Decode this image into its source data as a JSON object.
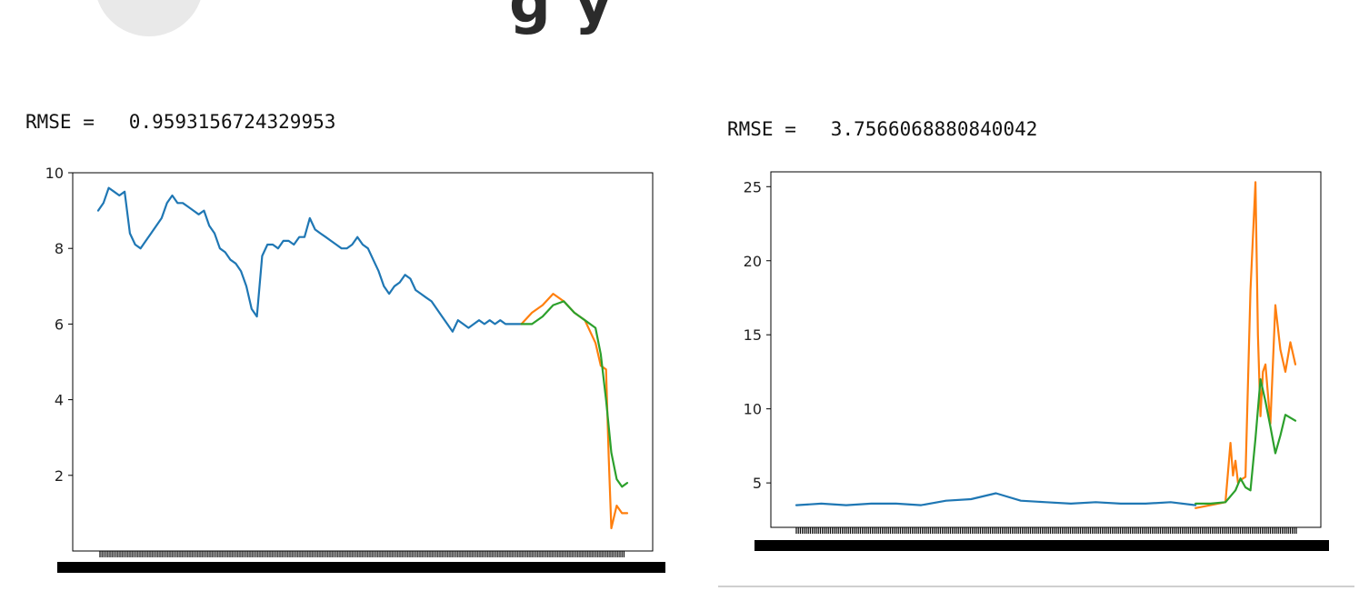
{
  "header": {
    "title_fragment": "g y"
  },
  "colors": {
    "blue": "#1f77b4",
    "orange": "#ff7f0e",
    "green": "#2ca02c",
    "axis": "#000000"
  },
  "chart_data": [
    {
      "type": "line",
      "title": "",
      "rmse_label": "RMSE =",
      "rmse_value": "0.9593156724329953",
      "ylim": [
        0,
        10
      ],
      "yticks": [
        2,
        4,
        6,
        8,
        10
      ],
      "series": [
        {
          "color": "#1f77b4",
          "x": [
            0.0,
            0.01,
            0.02,
            0.03,
            0.04,
            0.05,
            0.06,
            0.07,
            0.08,
            0.09,
            0.1,
            0.11,
            0.12,
            0.13,
            0.14,
            0.15,
            0.16,
            0.17,
            0.18,
            0.19,
            0.2,
            0.21,
            0.22,
            0.23,
            0.24,
            0.25,
            0.26,
            0.27,
            0.28,
            0.29,
            0.3,
            0.31,
            0.32,
            0.33,
            0.34,
            0.35,
            0.36,
            0.37,
            0.38,
            0.39,
            0.4,
            0.41,
            0.42,
            0.43,
            0.44,
            0.45,
            0.46,
            0.47,
            0.48,
            0.49,
            0.5,
            0.51,
            0.52,
            0.53,
            0.54,
            0.55,
            0.56,
            0.57,
            0.58,
            0.59,
            0.6,
            0.61,
            0.62,
            0.63,
            0.64,
            0.65,
            0.66,
            0.67,
            0.68,
            0.69,
            0.7,
            0.71,
            0.72,
            0.73,
            0.74,
            0.75,
            0.76,
            0.77,
            0.78,
            0.79,
            0.8
          ],
          "y": [
            9.0,
            9.2,
            9.6,
            9.5,
            9.4,
            9.5,
            8.4,
            8.1,
            8.0,
            8.2,
            8.4,
            8.6,
            8.8,
            9.2,
            9.4,
            9.2,
            9.2,
            9.1,
            9.0,
            8.9,
            9.0,
            8.6,
            8.4,
            8.0,
            7.9,
            7.7,
            7.6,
            7.4,
            7.0,
            6.4,
            6.2,
            7.8,
            8.1,
            8.1,
            8.0,
            8.2,
            8.2,
            8.1,
            8.3,
            8.3,
            8.8,
            8.5,
            8.4,
            8.3,
            8.2,
            8.1,
            8.0,
            8.0,
            8.1,
            8.3,
            8.1,
            8.0,
            7.7,
            7.4,
            7.0,
            6.8,
            7.0,
            7.1,
            7.3,
            7.2,
            6.9,
            6.8,
            6.7,
            6.6,
            6.4,
            6.2,
            6.0,
            5.8,
            6.1,
            6.0,
            5.9,
            6.0,
            6.1,
            6.0,
            6.1,
            6.0,
            6.1,
            6.0,
            6.0,
            6.0,
            6.0
          ]
        },
        {
          "color": "#ff7f0e",
          "x": [
            0.8,
            0.82,
            0.84,
            0.86,
            0.88,
            0.9,
            0.92,
            0.94,
            0.95,
            0.96,
            0.965,
            0.97,
            0.98,
            0.99,
            1.0
          ],
          "y": [
            6.0,
            6.3,
            6.5,
            6.8,
            6.6,
            6.3,
            6.1,
            5.5,
            4.9,
            4.8,
            2.5,
            0.6,
            1.2,
            1.0,
            1.0
          ]
        },
        {
          "color": "#2ca02c",
          "x": [
            0.8,
            0.82,
            0.84,
            0.86,
            0.88,
            0.9,
            0.92,
            0.94,
            0.95,
            0.96,
            0.97,
            0.98,
            0.99,
            1.0
          ],
          "y": [
            6.0,
            6.0,
            6.2,
            6.5,
            6.6,
            6.3,
            6.1,
            5.9,
            5.2,
            4.0,
            2.6,
            1.9,
            1.7,
            1.8
          ]
        }
      ]
    },
    {
      "type": "line",
      "title": "",
      "rmse_label": "RMSE =",
      "rmse_value": "3.7566068880840042",
      "ylim": [
        2,
        26
      ],
      "yticks": [
        5,
        10,
        15,
        20,
        25
      ],
      "series": [
        {
          "color": "#1f77b4",
          "x": [
            0.0,
            0.05,
            0.1,
            0.15,
            0.2,
            0.25,
            0.3,
            0.35,
            0.4,
            0.45,
            0.5,
            0.55,
            0.6,
            0.65,
            0.7,
            0.75,
            0.8
          ],
          "y": [
            3.5,
            3.6,
            3.5,
            3.6,
            3.6,
            3.5,
            3.8,
            3.9,
            4.3,
            3.8,
            3.7,
            3.6,
            3.7,
            3.6,
            3.6,
            3.7,
            3.5
          ]
        },
        {
          "color": "#ff7f0e",
          "x": [
            0.8,
            0.83,
            0.86,
            0.87,
            0.875,
            0.88,
            0.885,
            0.89,
            0.9,
            0.91,
            0.92,
            0.925,
            0.93,
            0.935,
            0.94,
            0.95,
            0.96,
            0.97,
            0.98,
            0.99,
            1.0
          ],
          "y": [
            3.3,
            3.5,
            3.7,
            7.7,
            5.5,
            6.5,
            5.0,
            5.2,
            5.4,
            18.0,
            25.3,
            15.0,
            9.5,
            12.5,
            13.0,
            9.0,
            17.0,
            14.0,
            12.5,
            14.5,
            13.0
          ]
        },
        {
          "color": "#2ca02c",
          "x": [
            0.8,
            0.83,
            0.86,
            0.88,
            0.89,
            0.9,
            0.91,
            0.92,
            0.93,
            0.94,
            0.95,
            0.96,
            0.97,
            0.98,
            0.99,
            1.0
          ],
          "y": [
            3.6,
            3.6,
            3.7,
            4.5,
            5.3,
            4.7,
            4.5,
            8.0,
            12.0,
            10.5,
            8.8,
            7.0,
            8.2,
            9.6,
            9.4,
            9.2
          ]
        }
      ]
    }
  ]
}
